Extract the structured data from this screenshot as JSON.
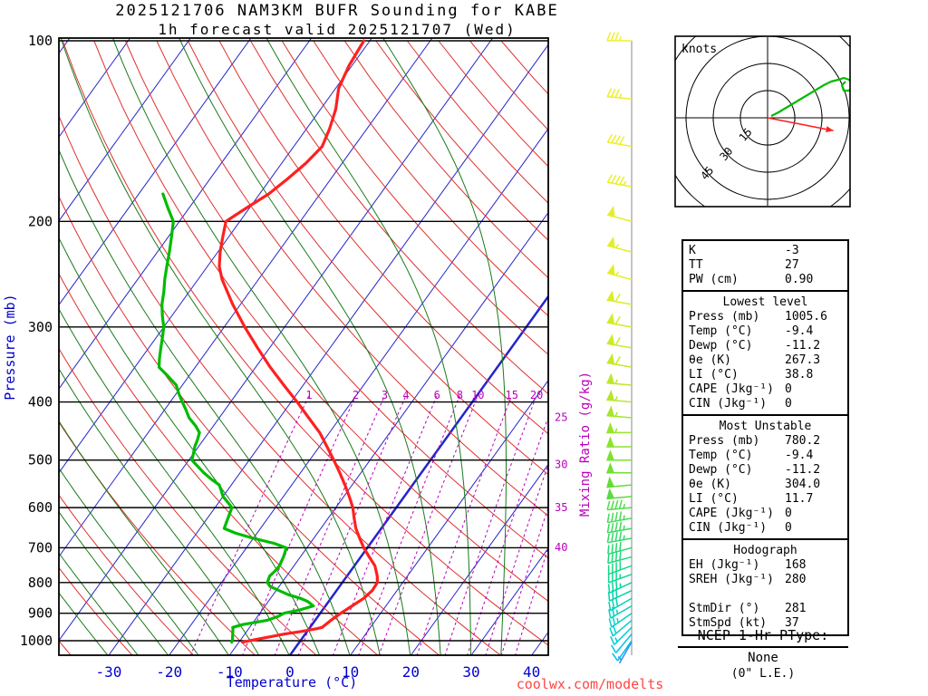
{
  "title": {
    "line1": "2025121706 NAM3KM BUFR Sounding for KABE",
    "line2": "1h forecast valid 2025121707 (Wed)"
  },
  "watermark": "coolwx.com/modelts",
  "colors": {
    "temperature_curve": "#ff2020",
    "dewpoint_curve": "#00bb00",
    "isotherm": "#2424cc",
    "dry_adiabat": "#e03030",
    "moist_adiabat": "#1a7a1a",
    "mixing_ratio": "#bb00bb",
    "axis_label_blue": "#0000cc",
    "pressure_line": "#000000",
    "watermark_red": "#ff4646",
    "hodograph_trace": "#00bb00",
    "storm_motion_arrow": "#ff2020",
    "barb_gradient": [
      [
        100,
        "#f2ef2a"
      ],
      [
        250,
        "#e2ee22"
      ],
      [
        400,
        "#b5e62b"
      ],
      [
        550,
        "#63dd35"
      ],
      [
        700,
        "#27d970"
      ],
      [
        820,
        "#00d4a8"
      ],
      [
        920,
        "#00cfcf"
      ],
      [
        1000,
        "#00bfe8"
      ],
      [
        1006,
        "#2e86ff"
      ]
    ]
  },
  "axes": {
    "pressure_label": "Pressure (mb)",
    "temperature_label": "Temperature (°C)",
    "mixing_ratio_axis_label": "Mixing Ratio (g/kg)",
    "pressure_ticks": [
      100,
      200,
      300,
      400,
      500,
      600,
      700,
      800,
      900,
      1000
    ],
    "temperature_ticks": [
      -30,
      -20,
      -10,
      0,
      10,
      20,
      30,
      40
    ]
  },
  "chart_data": {
    "type": "line",
    "title": "2025121706 NAM3KM BUFR Sounding for KABE, 1h forecast valid 2025121707 (Wed)",
    "xlabel": "Temperature (°C)",
    "ylabel": "Pressure (mb)",
    "y_scale": "log",
    "x_ticks": [
      -30,
      -20,
      -10,
      0,
      10,
      20,
      30,
      40
    ],
    "y_ticks": [
      100,
      200,
      300,
      400,
      500,
      600,
      700,
      800,
      900,
      1000
    ],
    "mixing_ratio_lines": [
      1,
      2,
      3,
      4,
      6,
      8,
      10,
      15,
      20,
      25,
      30,
      35,
      40
    ],
    "series": [
      {
        "name": "Temperature",
        "units": "°C vs mb",
        "color_key": "temperature_curve",
        "points": [
          [
            1005.6,
            -9.4
          ],
          [
            995,
            -7.5
          ],
          [
            985,
            -5.5
          ],
          [
            975,
            -3.5
          ],
          [
            965,
            -1.0
          ],
          [
            955,
            1.2
          ],
          [
            950,
            2.0
          ],
          [
            925,
            2.6
          ],
          [
            900,
            3.4
          ],
          [
            875,
            4.4
          ],
          [
            850,
            5.4
          ],
          [
            825,
            5.9
          ],
          [
            800,
            5.8
          ],
          [
            780,
            5.0
          ],
          [
            750,
            3.4
          ],
          [
            725,
            1.4
          ],
          [
            700,
            -0.6
          ],
          [
            675,
            -2.4
          ],
          [
            650,
            -4.2
          ],
          [
            625,
            -5.7
          ],
          [
            600,
            -7.2
          ],
          [
            575,
            -9.1
          ],
          [
            550,
            -11.2
          ],
          [
            525,
            -13.5
          ],
          [
            500,
            -16.0
          ],
          [
            475,
            -18.7
          ],
          [
            450,
            -21.6
          ],
          [
            425,
            -25.2
          ],
          [
            400,
            -29.0
          ],
          [
            375,
            -33.2
          ],
          [
            350,
            -37.6
          ],
          [
            325,
            -42.0
          ],
          [
            300,
            -46.6
          ],
          [
            275,
            -51.3
          ],
          [
            250,
            -56.0
          ],
          [
            238,
            -58.0
          ],
          [
            225,
            -59.6
          ],
          [
            212,
            -61.0
          ],
          [
            200,
            -62.3
          ],
          [
            190,
            -60.5
          ],
          [
            180,
            -58.5
          ],
          [
            170,
            -57.2
          ],
          [
            160,
            -56.0
          ],
          [
            150,
            -55.3
          ],
          [
            140,
            -56.2
          ],
          [
            130,
            -57.5
          ],
          [
            120,
            -59.5
          ],
          [
            110,
            -60.5
          ],
          [
            100,
            -61.0
          ]
        ]
      },
      {
        "name": "Dewpoint",
        "units": "°C vs mb",
        "color_key": "dewpoint_curve",
        "points": [
          [
            1005.6,
            -11.2
          ],
          [
            995,
            -11.4
          ],
          [
            985,
            -11.7
          ],
          [
            975,
            -12.0
          ],
          [
            965,
            -12.3
          ],
          [
            955,
            -12.6
          ],
          [
            950,
            -12.8
          ],
          [
            940,
            -11.5
          ],
          [
            925,
            -8.0
          ],
          [
            910,
            -6.5
          ],
          [
            900,
            -6.0
          ],
          [
            890,
            -4.0
          ],
          [
            875,
            -2.0
          ],
          [
            860,
            -3.5
          ],
          [
            850,
            -5.0
          ],
          [
            838,
            -7.5
          ],
          [
            825,
            -9.5
          ],
          [
            812,
            -11.5
          ],
          [
            800,
            -12.4
          ],
          [
            780,
            -12.8
          ],
          [
            765,
            -12.5
          ],
          [
            750,
            -12.4
          ],
          [
            738,
            -12.6
          ],
          [
            725,
            -12.8
          ],
          [
            712,
            -13.1
          ],
          [
            700,
            -13.4
          ],
          [
            688,
            -16.0
          ],
          [
            675,
            -20.0
          ],
          [
            662,
            -23.5
          ],
          [
            650,
            -26.0
          ],
          [
            625,
            -26.6
          ],
          [
            600,
            -27.2
          ],
          [
            588,
            -28.5
          ],
          [
            575,
            -30.0
          ],
          [
            562,
            -31.0
          ],
          [
            550,
            -32.0
          ],
          [
            538,
            -34.0
          ],
          [
            525,
            -36.0
          ],
          [
            512,
            -37.8
          ],
          [
            500,
            -39.5
          ],
          [
            488,
            -40.0
          ],
          [
            475,
            -40.6
          ],
          [
            462,
            -41.0
          ],
          [
            450,
            -41.5
          ],
          [
            438,
            -43.0
          ],
          [
            425,
            -45.0
          ],
          [
            412,
            -46.5
          ],
          [
            400,
            -48.0
          ],
          [
            388,
            -49.5
          ],
          [
            375,
            -51.0
          ],
          [
            362,
            -53.5
          ],
          [
            350,
            -56.0
          ],
          [
            338,
            -57.0
          ],
          [
            325,
            -58.0
          ],
          [
            312,
            -59.0
          ],
          [
            300,
            -60.0
          ],
          [
            288,
            -61.5
          ],
          [
            275,
            -63.0
          ],
          [
            262,
            -64.2
          ],
          [
            250,
            -65.5
          ],
          [
            238,
            -66.7
          ],
          [
            225,
            -68.0
          ],
          [
            212,
            -69.5
          ],
          [
            200,
            -71.0
          ],
          [
            190,
            -73.5
          ],
          [
            180,
            -76.0
          ]
        ]
      }
    ],
    "winds_p_dir_spd": [
      [
        1005,
        210,
        8
      ],
      [
        1000,
        215,
        10
      ],
      [
        975,
        220,
        14
      ],
      [
        950,
        225,
        18
      ],
      [
        925,
        230,
        22
      ],
      [
        900,
        235,
        25
      ],
      [
        875,
        240,
        28
      ],
      [
        850,
        240,
        30
      ],
      [
        825,
        245,
        32
      ],
      [
        800,
        245,
        35
      ],
      [
        775,
        250,
        37
      ],
      [
        750,
        250,
        40
      ],
      [
        725,
        255,
        42
      ],
      [
        700,
        255,
        43
      ],
      [
        675,
        260,
        45
      ],
      [
        650,
        260,
        45
      ],
      [
        625,
        260,
        47
      ],
      [
        600,
        265,
        48
      ],
      [
        575,
        265,
        50
      ],
      [
        550,
        265,
        50
      ],
      [
        525,
        270,
        52
      ],
      [
        500,
        270,
        52
      ],
      [
        475,
        270,
        54
      ],
      [
        450,
        270,
        55
      ],
      [
        425,
        275,
        55
      ],
      [
        400,
        275,
        57
      ],
      [
        375,
        275,
        58
      ],
      [
        350,
        280,
        60
      ],
      [
        325,
        280,
        60
      ],
      [
        300,
        280,
        62
      ],
      [
        275,
        280,
        60
      ],
      [
        250,
        285,
        58
      ],
      [
        225,
        285,
        55
      ],
      [
        200,
        285,
        50
      ],
      [
        175,
        280,
        45
      ],
      [
        150,
        280,
        42
      ],
      [
        125,
        275,
        38
      ],
      [
        100,
        270,
        35
      ]
    ]
  },
  "hodograph": {
    "units_label": "knots",
    "ring_interval_kt": 15,
    "ring_labels": [
      "15",
      "30",
      "45"
    ],
    "trace_uv_kt": [
      [
        2,
        1
      ],
      [
        6,
        3
      ],
      [
        11,
        6
      ],
      [
        16,
        9
      ],
      [
        21,
        12
      ],
      [
        26,
        15
      ],
      [
        31,
        18
      ],
      [
        35,
        20
      ],
      [
        39,
        21
      ],
      [
        42,
        22
      ],
      [
        45,
        21
      ],
      [
        47,
        18
      ],
      [
        45,
        15
      ],
      [
        42,
        15
      ],
      [
        41,
        18
      ],
      [
        43,
        20
      ]
    ],
    "storm_dir_deg": 281,
    "storm_speed_kt": 37
  },
  "table": {
    "indices": [
      [
        "K",
        "-3"
      ],
      [
        "TT",
        "27"
      ],
      [
        "PW (cm)",
        "0.90"
      ]
    ],
    "sections": [
      {
        "header": "Lowest level",
        "rows": [
          [
            "Press (mb)",
            "1005.6"
          ],
          [
            "Temp (°C)",
            "-9.4"
          ],
          [
            "Dewp (°C)",
            "-11.2"
          ],
          [
            "θe (K)",
            "267.3"
          ],
          [
            "LI (°C)",
            "38.8"
          ],
          [
            "CAPE (Jkg⁻¹)",
            "0"
          ],
          [
            "CIN (Jkg⁻¹)",
            "0"
          ]
        ]
      },
      {
        "header": "Most Unstable",
        "rows": [
          [
            "Press (mb)",
            "780.2"
          ],
          [
            "Temp (°C)",
            "-9.4"
          ],
          [
            "Dewp (°C)",
            "-11.2"
          ],
          [
            "θe (K)",
            "304.0"
          ],
          [
            "LI (°C)",
            "11.7"
          ],
          [
            "CAPE (Jkg⁻¹)",
            "0"
          ],
          [
            "CIN (Jkg⁻¹)",
            "0"
          ]
        ]
      },
      {
        "header": "Hodograph",
        "rows": [
          [
            "EH (Jkg⁻¹)",
            "168"
          ],
          [
            "SREH (Jkg⁻¹)",
            "280"
          ],
          [
            "",
            ""
          ],
          [
            "StmDir (°)",
            "281"
          ],
          [
            "StmSpd (kt)",
            "37"
          ]
        ]
      }
    ]
  },
  "ptype": {
    "heading": "NCEP 1-Hr PType:",
    "value": "None",
    "detail": "(0\" L.E.)"
  }
}
